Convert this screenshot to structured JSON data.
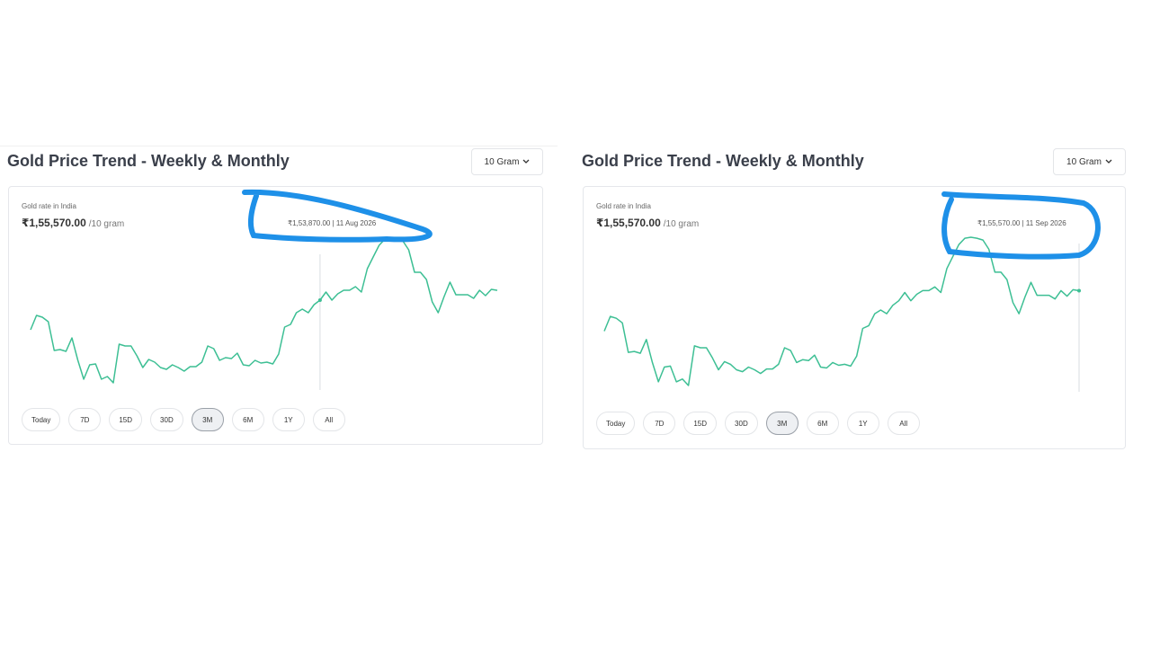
{
  "panels": [
    {
      "title": "Gold Price Trend - Weekly & Monthly",
      "select": "10 Gram",
      "label": "Gold rate in India",
      "price": "₹1,55,570.00",
      "unit": "/10 gram",
      "tooltip": "₹1,53,870.00 | 11 Aug 2026",
      "buttons": [
        "Today",
        "7D",
        "15D",
        "30D",
        "3M",
        "6M",
        "1Y",
        "All"
      ],
      "active": "3M"
    },
    {
      "title": "Gold Price Trend - Weekly & Monthly",
      "select": "10 Gram",
      "label": "Gold rate in India",
      "price": "₹1,55,570.00",
      "unit": "/10 gram",
      "tooltip": "₹1,55,570.00 | 11 Sep 2026",
      "buttons": [
        "Today",
        "7D",
        "15D",
        "30D",
        "3M",
        "6M",
        "1Y",
        "All"
      ],
      "active": "3M"
    }
  ],
  "chart_data": [
    {
      "type": "line",
      "color": "#3dbf94",
      "hover_index": 49,
      "values": [
        148760,
        151240,
        150930,
        150150,
        145190,
        145350,
        145040,
        147360,
        143490,
        140230,
        142710,
        142870,
        140230,
        140700,
        139610,
        146280,
        145970,
        145970,
        144260,
        142250,
        143640,
        143180,
        142250,
        141940,
        142710,
        142250,
        141630,
        142400,
        142400,
        143180,
        145970,
        145500,
        143490,
        143950,
        143800,
        144730,
        142710,
        142560,
        143490,
        143020,
        143180,
        142870,
        144570,
        149220,
        149690,
        151700,
        152320,
        151700,
        153100,
        153870,
        155270,
        153870,
        154960,
        155580,
        155580,
        156200,
        155270,
        159300,
        161310,
        163330,
        164410,
        164570,
        164410,
        164100,
        162550,
        158680,
        158680,
        157440,
        153560,
        151700,
        154490,
        156970,
        154800,
        154800,
        154800,
        154180,
        155580,
        154650,
        155730,
        155570
      ]
    },
    {
      "type": "line",
      "color": "#3dbf94",
      "hover_index": 79,
      "values": [
        148760,
        151240,
        150930,
        150150,
        145190,
        145350,
        145040,
        147360,
        143490,
        140230,
        142710,
        142870,
        140230,
        140700,
        139610,
        146280,
        145970,
        145970,
        144260,
        142250,
        143640,
        143180,
        142250,
        141940,
        142710,
        142250,
        141630,
        142400,
        142400,
        143180,
        145970,
        145500,
        143490,
        143950,
        143800,
        144730,
        142710,
        142560,
        143490,
        143020,
        143180,
        142870,
        144570,
        149220,
        149690,
        151700,
        152320,
        151700,
        153100,
        153870,
        155270,
        153870,
        154960,
        155580,
        155580,
        156200,
        155270,
        159300,
        161310,
        163330,
        164410,
        164570,
        164410,
        164100,
        162550,
        158680,
        158680,
        157440,
        153560,
        151700,
        154490,
        156970,
        154800,
        154800,
        154800,
        154180,
        155580,
        154650,
        155730,
        155570
      ]
    }
  ]
}
